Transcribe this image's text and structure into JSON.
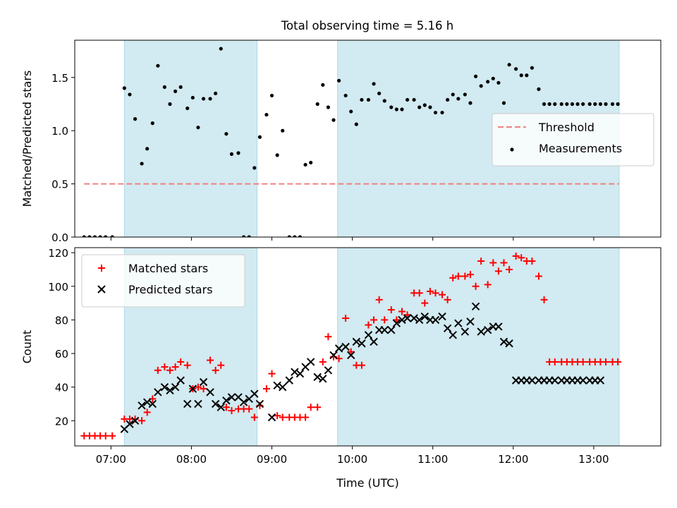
{
  "figure_title": "Total observing time = 5.16 h",
  "colors": {
    "shade": "#add8e6",
    "threshold": "#f08080",
    "measurements": "#000000",
    "matched": "#ff0000",
    "predicted": "#000000"
  },
  "chart_data": [
    {
      "type": "scatter",
      "panel": "top",
      "title": "Total observing time = 5.16 h",
      "ylabel": "Matched/Predicted stars",
      "xlabel": "",
      "xlim": [
        "06:33",
        "13:50"
      ],
      "ylim": [
        0,
        1.85
      ],
      "yticks": [
        0.0,
        0.5,
        1.0,
        1.5
      ],
      "ytick_labels": [
        "0.0",
        "0.5",
        "1.0",
        "1.5"
      ],
      "grid": false,
      "legend": "center-right",
      "shaded_periods": [
        [
          "07:10",
          "08:49"
        ],
        [
          "09:49",
          "13:19"
        ]
      ],
      "threshold": {
        "name": "Threshold",
        "value": 0.5,
        "x": [
          "06:40",
          "13:19"
        ],
        "style": "dashed",
        "color": "#f08080"
      },
      "series": [
        {
          "name": "Measurements",
          "marker": "dot",
          "color": "#000000",
          "x": [
            "06:40",
            "06:44",
            "06:48",
            "06:52",
            "06:56",
            "07:01",
            "07:10",
            "07:14",
            "07:18",
            "07:23",
            "07:27",
            "07:31",
            "07:35",
            "07:40",
            "07:44",
            "07:48",
            "07:52",
            "07:57",
            "08:01",
            "08:05",
            "08:09",
            "08:14",
            "08:18",
            "08:22",
            "08:26",
            "08:30",
            "08:35",
            "08:39",
            "08:43",
            "08:47",
            "08:51",
            "08:56",
            "09:00",
            "09:04",
            "09:08",
            "09:13",
            "09:17",
            "09:21",
            "09:25",
            "09:29",
            "09:34",
            "09:38",
            "09:42",
            "09:46",
            "09:50",
            "09:55",
            "09:59",
            "10:03",
            "10:07",
            "10:12",
            "10:16",
            "10:20",
            "10:24",
            "10:29",
            "10:33",
            "10:37",
            "10:41",
            "10:46",
            "10:50",
            "10:54",
            "10:58",
            "11:02",
            "11:07",
            "11:11",
            "11:15",
            "11:19",
            "11:24",
            "11:28",
            "11:32",
            "11:36",
            "11:41",
            "11:45",
            "11:49",
            "11:53",
            "11:57",
            "12:02",
            "12:06",
            "12:10",
            "12:14",
            "12:19",
            "12:23",
            "12:27",
            "12:31",
            "12:36",
            "12:40",
            "12:44",
            "12:48",
            "12:52",
            "12:57",
            "13:01",
            "13:05",
            "13:09",
            "13:14",
            "13:18"
          ],
          "y": [
            0,
            0,
            0,
            0,
            0,
            0,
            1.4,
            1.34,
            1.11,
            0.69,
            0.83,
            1.07,
            1.61,
            1.41,
            1.25,
            1.37,
            1.41,
            1.21,
            1.31,
            1.03,
            1.3,
            1.3,
            1.35,
            1.77,
            0.97,
            0.78,
            0.79,
            0,
            0,
            0.65,
            0.94,
            1.15,
            1.33,
            0.77,
            1.0,
            0,
            0,
            0,
            0.68,
            0.7,
            1.25,
            1.43,
            1.22,
            1.1,
            1.47,
            1.33,
            1.18,
            1.06,
            1.29,
            1.29,
            1.44,
            1.35,
            1.28,
            1.22,
            1.2,
            1.2,
            1.29,
            1.29,
            1.22,
            1.24,
            1.22,
            1.17,
            1.17,
            1.29,
            1.34,
            1.3,
            1.34,
            1.26,
            1.51,
            1.42,
            1.46,
            1.49,
            1.45,
            1.26,
            1.62,
            1.58,
            1.52,
            1.52,
            1.59,
            1.39,
            1.25,
            1.25,
            1.25,
            1.25,
            1.25,
            1.25,
            1.25,
            1.25,
            1.25,
            1.25,
            1.25,
            1.25,
            1.25,
            1.25
          ]
        }
      ]
    },
    {
      "type": "scatter",
      "panel": "bottom",
      "ylabel": "Count",
      "xlabel": "Time (UTC)",
      "xlim": [
        "06:33",
        "13:50"
      ],
      "ylim": [
        5,
        123
      ],
      "yticks": [
        20,
        40,
        60,
        80,
        100,
        120
      ],
      "ytick_labels": [
        "20",
        "40",
        "60",
        "80",
        "100",
        "120"
      ],
      "xticks": [
        "07:00",
        "08:00",
        "09:00",
        "10:00",
        "11:00",
        "12:00",
        "13:00"
      ],
      "xtick_labels": [
        "07:00",
        "08:00",
        "09:00",
        "10:00",
        "11:00",
        "12:00",
        "13:00"
      ],
      "grid": false,
      "legend": "top-left",
      "shaded_periods": [
        [
          "07:10",
          "08:49"
        ],
        [
          "09:49",
          "13:19"
        ]
      ],
      "series": [
        {
          "name": "Matched stars",
          "marker": "plus",
          "color": "#ff0000",
          "x": [
            "06:40",
            "06:44",
            "06:48",
            "06:52",
            "06:56",
            "07:01",
            "07:10",
            "07:14",
            "07:18",
            "07:23",
            "07:27",
            "07:31",
            "07:35",
            "07:40",
            "07:44",
            "07:48",
            "07:52",
            "07:57",
            "08:01",
            "08:05",
            "08:09",
            "08:14",
            "08:18",
            "08:22",
            "08:26",
            "08:30",
            "08:35",
            "08:39",
            "08:43",
            "08:47",
            "08:51",
            "08:56",
            "09:00",
            "09:04",
            "09:08",
            "09:13",
            "09:17",
            "09:21",
            "09:25",
            "09:29",
            "09:34",
            "09:38",
            "09:42",
            "09:46",
            "09:50",
            "09:55",
            "09:59",
            "10:03",
            "10:07",
            "10:12",
            "10:16",
            "10:20",
            "10:24",
            "10:29",
            "10:33",
            "10:37",
            "10:41",
            "10:46",
            "10:50",
            "10:54",
            "10:58",
            "11:02",
            "11:07",
            "11:11",
            "11:15",
            "11:19",
            "11:24",
            "11:28",
            "11:32",
            "11:36",
            "11:41",
            "11:45",
            "11:49",
            "11:53",
            "11:57",
            "12:02",
            "12:06",
            "12:10",
            "12:14",
            "12:19",
            "12:23",
            "12:27",
            "12:31",
            "12:36",
            "12:40",
            "12:44",
            "12:48",
            "12:52",
            "12:57",
            "13:01",
            "13:05",
            "13:09",
            "13:14",
            "13:18"
          ],
          "y": [
            11,
            11,
            11,
            11,
            11,
            11,
            21,
            21,
            21,
            20,
            25,
            33,
            50,
            52,
            50,
            52,
            55,
            53,
            39,
            40,
            39,
            56,
            50,
            53,
            28,
            26,
            27,
            27,
            27,
            22,
            29,
            39,
            48,
            23,
            22,
            22,
            22,
            22,
            22,
            28,
            28,
            55,
            70,
            58,
            57,
            81,
            61,
            53,
            53,
            77,
            80,
            92,
            80,
            86,
            80,
            85,
            83,
            96,
            96,
            90,
            97,
            96,
            95,
            92,
            105,
            106,
            106,
            107,
            100,
            115,
            101,
            114,
            109,
            114,
            110,
            118,
            117,
            115,
            115,
            106,
            92,
            55,
            55,
            55,
            55,
            55,
            55,
            55,
            55,
            55,
            55,
            55,
            55,
            55
          ]
        },
        {
          "name": "Predicted stars",
          "marker": "x",
          "color": "#000000",
          "x": [
            "07:10",
            "07:14",
            "07:18",
            "07:23",
            "07:27",
            "07:31",
            "07:35",
            "07:40",
            "07:44",
            "07:48",
            "07:52",
            "07:57",
            "08:01",
            "08:05",
            "08:09",
            "08:14",
            "08:18",
            "08:22",
            "08:26",
            "08:30",
            "08:35",
            "08:39",
            "08:43",
            "08:47",
            "08:51",
            "09:00",
            "09:04",
            "09:08",
            "09:13",
            "09:17",
            "09:21",
            "09:25",
            "09:29",
            "09:34",
            "09:38",
            "09:42",
            "09:46",
            "09:50",
            "09:55",
            "09:59",
            "10:03",
            "10:07",
            "10:12",
            "10:16",
            "10:20",
            "10:24",
            "10:29",
            "10:33",
            "10:37",
            "10:41",
            "10:46",
            "10:50",
            "10:54",
            "10:58",
            "11:02",
            "11:07",
            "11:11",
            "11:15",
            "11:19",
            "11:24",
            "11:28",
            "11:32",
            "11:36",
            "11:41",
            "11:45",
            "11:49",
            "11:53",
            "11:57",
            "12:02",
            "12:06",
            "12:10",
            "12:14",
            "12:19",
            "12:23",
            "12:27",
            "12:31",
            "12:36",
            "12:40",
            "12:44",
            "12:48",
            "12:52",
            "12:57",
            "13:01",
            "13:05"
          ],
          "y": [
            15,
            18,
            20,
            29,
            31,
            30,
            37,
            40,
            38,
            40,
            44,
            30,
            39,
            30,
            43,
            37,
            30,
            28,
            32,
            34,
            34,
            31,
            33,
            36,
            30,
            22,
            41,
            40,
            44,
            49,
            48,
            52,
            55,
            46,
            45,
            50,
            59,
            63,
            64,
            59,
            67,
            66,
            71,
            67,
            74,
            74,
            74,
            78,
            80,
            81,
            81,
            80,
            82,
            80,
            80,
            82,
            75,
            71,
            78,
            73,
            79,
            88,
            73,
            74,
            76,
            76,
            67,
            66,
            44,
            44,
            44,
            44,
            44,
            44,
            44,
            44,
            44,
            44,
            44,
            44,
            44,
            44,
            44,
            44
          ]
        }
      ]
    }
  ]
}
